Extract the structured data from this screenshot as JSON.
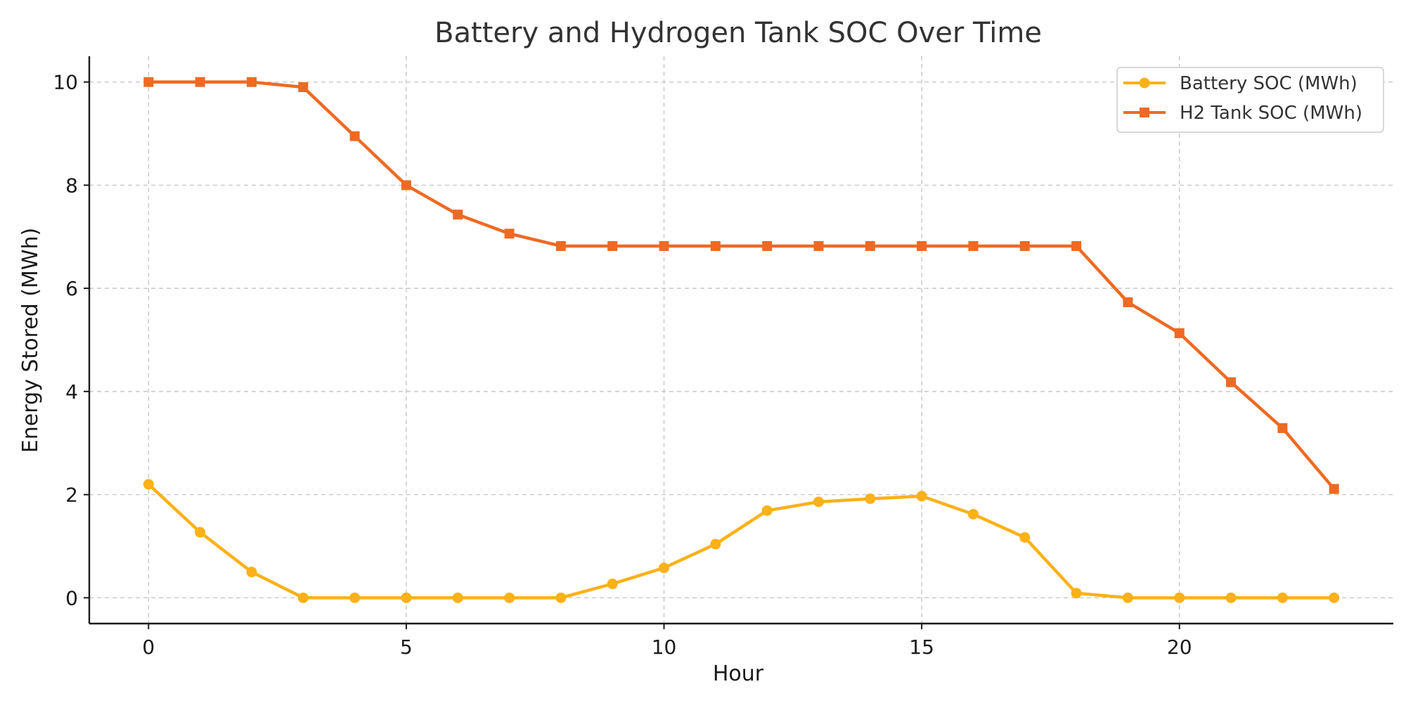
{
  "chart_data": {
    "type": "line",
    "title": "Battery and Hydrogen Tank SOC Over Time",
    "xlabel": "Hour",
    "ylabel": "Energy Stored (MWh)",
    "x": [
      0,
      1,
      2,
      3,
      4,
      5,
      6,
      7,
      8,
      9,
      10,
      11,
      12,
      13,
      14,
      15,
      16,
      17,
      18,
      19,
      20,
      21,
      22,
      23
    ],
    "xlim": [
      -1.15,
      24.15
    ],
    "ylim": [
      -0.5,
      10.5
    ],
    "xticks": [
      0,
      5,
      10,
      15,
      20
    ],
    "yticks": [
      0,
      2,
      4,
      6,
      8,
      10
    ],
    "grid": true,
    "legend_position": "top-right",
    "series": [
      {
        "name": "Battery SOC (MWh)",
        "color": "#FBB117",
        "marker": "circle",
        "values": [
          2.2,
          1.27,
          0.5,
          0.0,
          0.0,
          0.0,
          0.0,
          0.0,
          0.0,
          0.27,
          0.58,
          1.04,
          1.69,
          1.86,
          1.92,
          1.97,
          1.62,
          1.17,
          0.09,
          0.0,
          0.0,
          0.0,
          0.0,
          0.0
        ]
      },
      {
        "name": "H2 Tank SOC (MWh)",
        "color": "#EE6A23",
        "marker": "square",
        "values": [
          10.0,
          10.0,
          10.0,
          9.9,
          8.95,
          8.0,
          7.43,
          7.06,
          6.82,
          6.82,
          6.82,
          6.82,
          6.82,
          6.82,
          6.82,
          6.82,
          6.82,
          6.82,
          6.82,
          5.73,
          5.13,
          4.18,
          3.29,
          2.11
        ]
      }
    ]
  }
}
